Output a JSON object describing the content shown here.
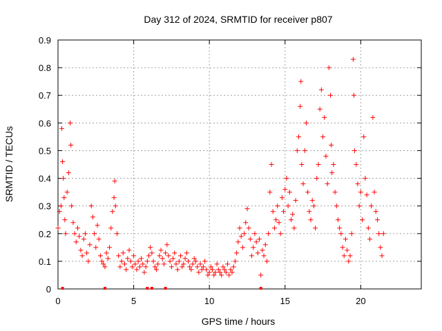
{
  "chart_data": {
    "type": "scatter",
    "title": "Day 312 of 2024, SRMTID for receiver p807",
    "xlabel": "GPS time / hours",
    "ylabel": "SRMTID / TECUs",
    "xlim": [
      0,
      24
    ],
    "ylim": [
      0,
      0.9
    ],
    "xticks": [
      0,
      5,
      10,
      15,
      20
    ],
    "yticks": [
      0,
      0.1,
      0.2,
      0.3,
      0.4,
      0.5,
      0.6,
      0.7,
      0.8,
      0.9
    ],
    "grid": true,
    "marker": "+",
    "color": "#ff0000",
    "series": [
      {
        "name": "SRMTID",
        "x": [
          0.0,
          0.1,
          0.2,
          0.25,
          0.3,
          0.35,
          0.4,
          0.45,
          0.5,
          0.6,
          0.7,
          0.8,
          0.85,
          0.9,
          1.0,
          1.1,
          1.2,
          1.3,
          1.4,
          1.5,
          1.6,
          1.7,
          1.8,
          1.9,
          2.0,
          2.1,
          2.2,
          2.3,
          2.4,
          2.5,
          2.6,
          2.7,
          2.8,
          2.9,
          3.0,
          3.1,
          3.2,
          3.3,
          3.4,
          3.5,
          3.6,
          3.7,
          3.75,
          3.8,
          3.9,
          4.0,
          4.1,
          4.2,
          4.3,
          4.4,
          4.5,
          4.6,
          4.7,
          4.8,
          4.9,
          5.0,
          5.1,
          5.2,
          5.3,
          5.4,
          5.5,
          5.6,
          5.7,
          5.8,
          5.9,
          6.0,
          6.1,
          6.2,
          6.3,
          6.4,
          6.5,
          6.6,
          6.7,
          6.8,
          6.9,
          7.0,
          7.1,
          7.2,
          7.3,
          7.4,
          7.5,
          7.6,
          7.7,
          7.8,
          7.9,
          8.0,
          8.1,
          8.2,
          8.3,
          8.4,
          8.5,
          8.6,
          8.7,
          8.8,
          8.9,
          9.0,
          9.1,
          9.2,
          9.3,
          9.4,
          9.5,
          9.6,
          9.7,
          9.8,
          9.9,
          10.0,
          10.1,
          10.2,
          10.3,
          10.4,
          10.5,
          10.6,
          10.7,
          10.8,
          10.9,
          11.0,
          11.1,
          11.2,
          11.3,
          11.4,
          11.5,
          11.6,
          11.7,
          11.8,
          11.9,
          12.0,
          12.1,
          12.2,
          12.3,
          12.4,
          12.5,
          12.6,
          12.7,
          12.8,
          12.9,
          13.0,
          13.1,
          13.2,
          13.3,
          13.4,
          13.5,
          13.6,
          13.7,
          13.8,
          13.9,
          14.0,
          14.1,
          14.2,
          14.3,
          14.4,
          14.5,
          14.6,
          14.7,
          14.8,
          14.9,
          15.0,
          15.1,
          15.2,
          15.3,
          15.4,
          15.5,
          15.6,
          15.7,
          15.8,
          15.9,
          16.0,
          16.05,
          16.1,
          16.2,
          16.3,
          16.4,
          16.5,
          16.6,
          16.7,
          16.8,
          16.9,
          17.0,
          17.1,
          17.2,
          17.3,
          17.4,
          17.5,
          17.6,
          17.7,
          17.8,
          17.9,
          18.0,
          18.05,
          18.1,
          18.2,
          18.3,
          18.4,
          18.5,
          18.6,
          18.7,
          18.8,
          18.9,
          19.0,
          19.1,
          19.2,
          19.3,
          19.4,
          19.5,
          19.55,
          19.6,
          19.7,
          19.8,
          19.9,
          20.0,
          20.1,
          20.2,
          20.3,
          20.4,
          20.5,
          20.6,
          20.7,
          20.8,
          20.9,
          21.0,
          21.1,
          21.2,
          21.3,
          21.4,
          21.5
        ],
        "y": [
          0.22,
          0.28,
          0.3,
          0.58,
          0.46,
          0.4,
          0.33,
          0.25,
          0.2,
          0.35,
          0.42,
          0.6,
          0.52,
          0.3,
          0.24,
          0.2,
          0.17,
          0.22,
          0.19,
          0.14,
          0.12,
          0.18,
          0.2,
          0.13,
          0.1,
          0.16,
          0.3,
          0.26,
          0.2,
          0.15,
          0.23,
          0.18,
          0.12,
          0.1,
          0.09,
          0.08,
          0.13,
          0.11,
          0.15,
          0.22,
          0.28,
          0.33,
          0.39,
          0.3,
          0.2,
          0.12,
          0.08,
          0.1,
          0.13,
          0.09,
          0.07,
          0.11,
          0.14,
          0.1,
          0.08,
          0.12,
          0.09,
          0.07,
          0.1,
          0.08,
          0.11,
          0.09,
          0.06,
          0.08,
          0.1,
          0.12,
          0.15,
          0.13,
          0.1,
          0.08,
          0.07,
          0.09,
          0.12,
          0.14,
          0.11,
          0.09,
          0.13,
          0.16,
          0.12,
          0.1,
          0.08,
          0.11,
          0.13,
          0.09,
          0.07,
          0.1,
          0.12,
          0.08,
          0.09,
          0.11,
          0.13,
          0.1,
          0.08,
          0.07,
          0.09,
          0.11,
          0.1,
          0.08,
          0.06,
          0.09,
          0.07,
          0.08,
          0.1,
          0.07,
          0.05,
          0.06,
          0.08,
          0.07,
          0.05,
          0.06,
          0.09,
          0.07,
          0.06,
          0.05,
          0.08,
          0.07,
          0.06,
          0.09,
          0.05,
          0.07,
          0.06,
          0.08,
          0.1,
          0.13,
          0.17,
          0.22,
          0.19,
          0.15,
          0.2,
          0.24,
          0.29,
          0.22,
          0.18,
          0.12,
          0.15,
          0.2,
          0.17,
          0.13,
          0.18,
          0.05,
          0.14,
          0.12,
          0.16,
          0.1,
          0.2,
          0.35,
          0.45,
          0.28,
          0.22,
          0.25,
          0.3,
          0.24,
          0.2,
          0.33,
          0.28,
          0.36,
          0.4,
          0.3,
          0.35,
          0.25,
          0.27,
          0.22,
          0.32,
          0.5,
          0.55,
          0.66,
          0.75,
          0.45,
          0.38,
          0.5,
          0.6,
          0.35,
          0.28,
          0.25,
          0.32,
          0.3,
          0.22,
          0.4,
          0.45,
          0.65,
          0.72,
          0.55,
          0.62,
          0.48,
          0.38,
          0.8,
          0.7,
          0.52,
          0.42,
          0.45,
          0.35,
          0.3,
          0.25,
          0.22,
          0.2,
          0.15,
          0.12,
          0.18,
          0.14,
          0.1,
          0.12,
          0.2,
          0.83,
          0.7,
          0.5,
          0.45,
          0.38,
          0.3,
          0.35,
          0.25,
          0.55,
          0.4,
          0.34,
          0.22,
          0.18,
          0.3,
          0.62,
          0.35,
          0.28,
          0.25,
          0.2,
          0.15,
          0.12,
          0.2
        ]
      }
    ],
    "zero_markers_x": [
      0.3,
      3.1,
      5.9,
      6.2,
      7.1,
      13.4
    ]
  }
}
